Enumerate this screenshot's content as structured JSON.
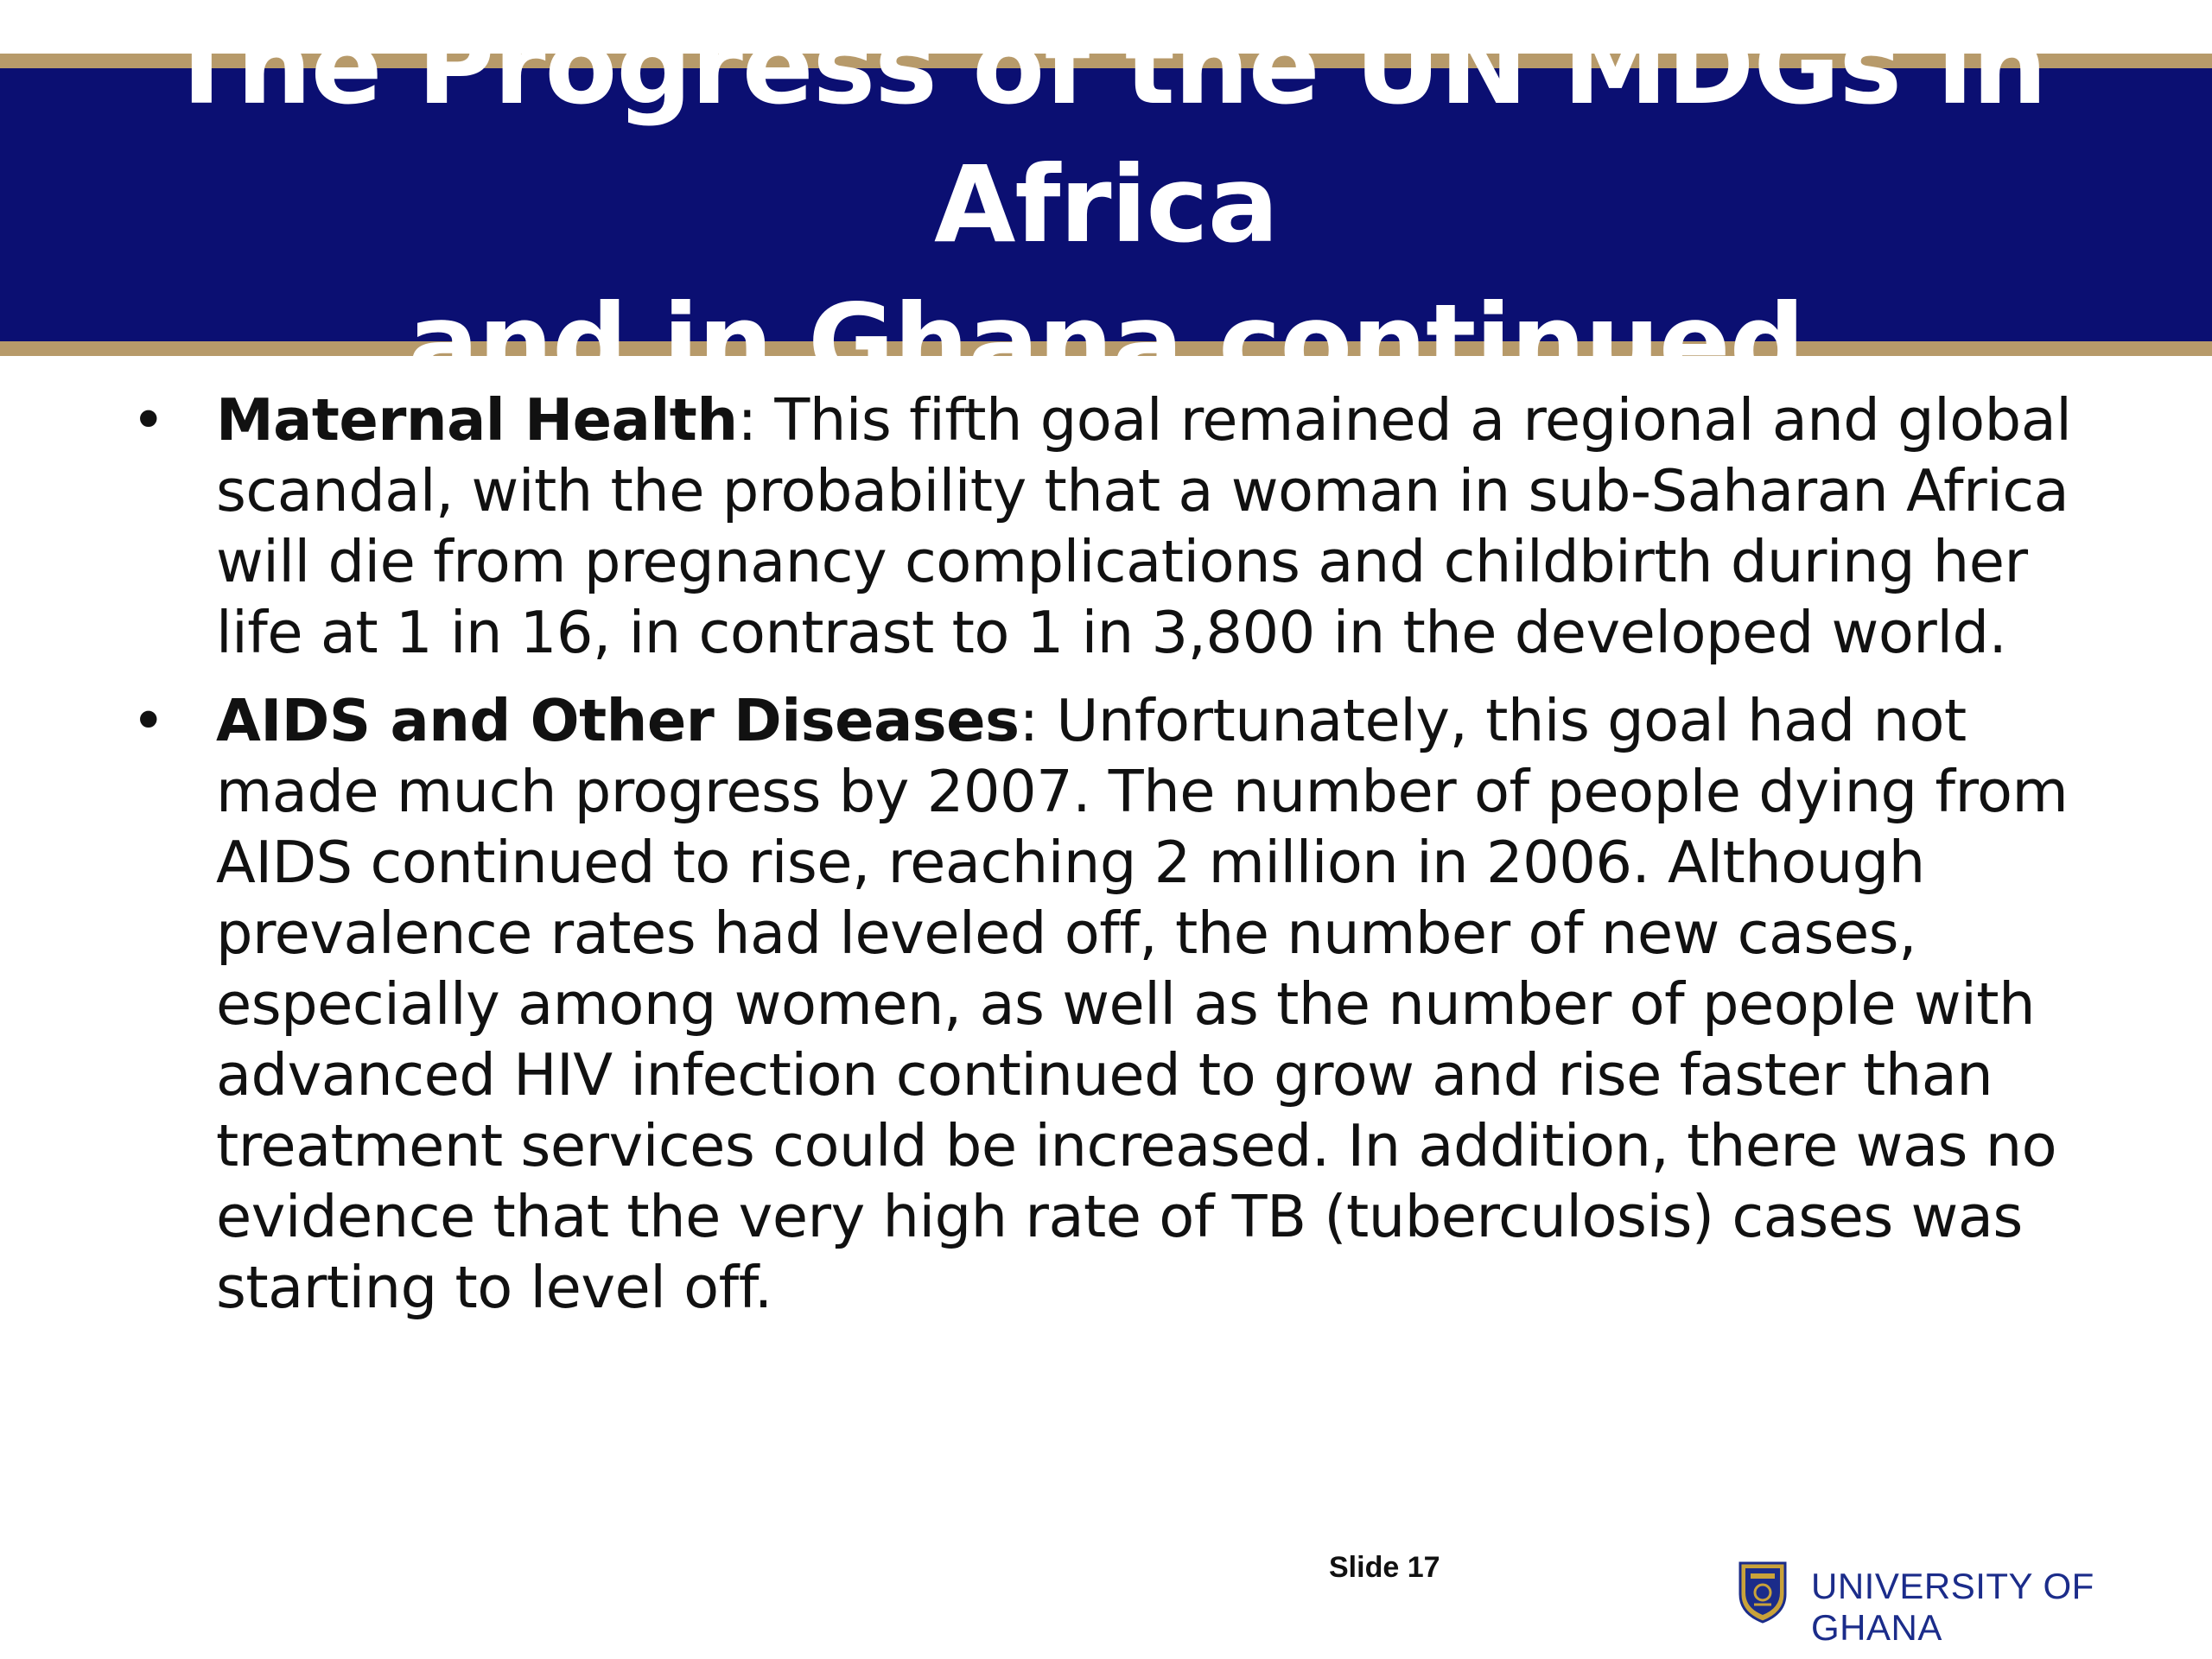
{
  "slide": {
    "title_line1": "The Progress of the UN MDGs in Africa",
    "title_line2": "and in Ghana continued",
    "bullets": [
      {
        "heading": "Maternal Health",
        "text": ": This fifth goal remained a regional and global scandal, with the probability that a woman in sub-Saharan Africa will die from pregnancy complications and childbirth during her life at 1 in 16, in contrast to 1 in 3,800 in the developed world."
      },
      {
        "heading": "AIDS and Other Diseases",
        "text": ": Unfortunately, this goal had not made much progress by 2007. The number of people dying from AIDS continued to rise, reaching 2 million in 2006. Although prevalence rates had leveled off, the number of new cases, especially among women, as well as the number of people with advanced HIV infection continued to grow and rise faster than treatment services could be increased. In addition, there was no evidence that the very high rate of TB (tuberculosis) cases was starting to level off."
      }
    ],
    "bullet_symbol": "•",
    "slide_number": "Slide 17",
    "institution": "UNIVERSITY OF GHANA"
  },
  "colors": {
    "title_bg": "#0b0f72",
    "title_border": "#b79a6a",
    "title_text": "#ffffff",
    "body_text": "#111111",
    "institution_text": "#1b2c8a"
  },
  "icons": {
    "logo": "university-crest-icon"
  }
}
